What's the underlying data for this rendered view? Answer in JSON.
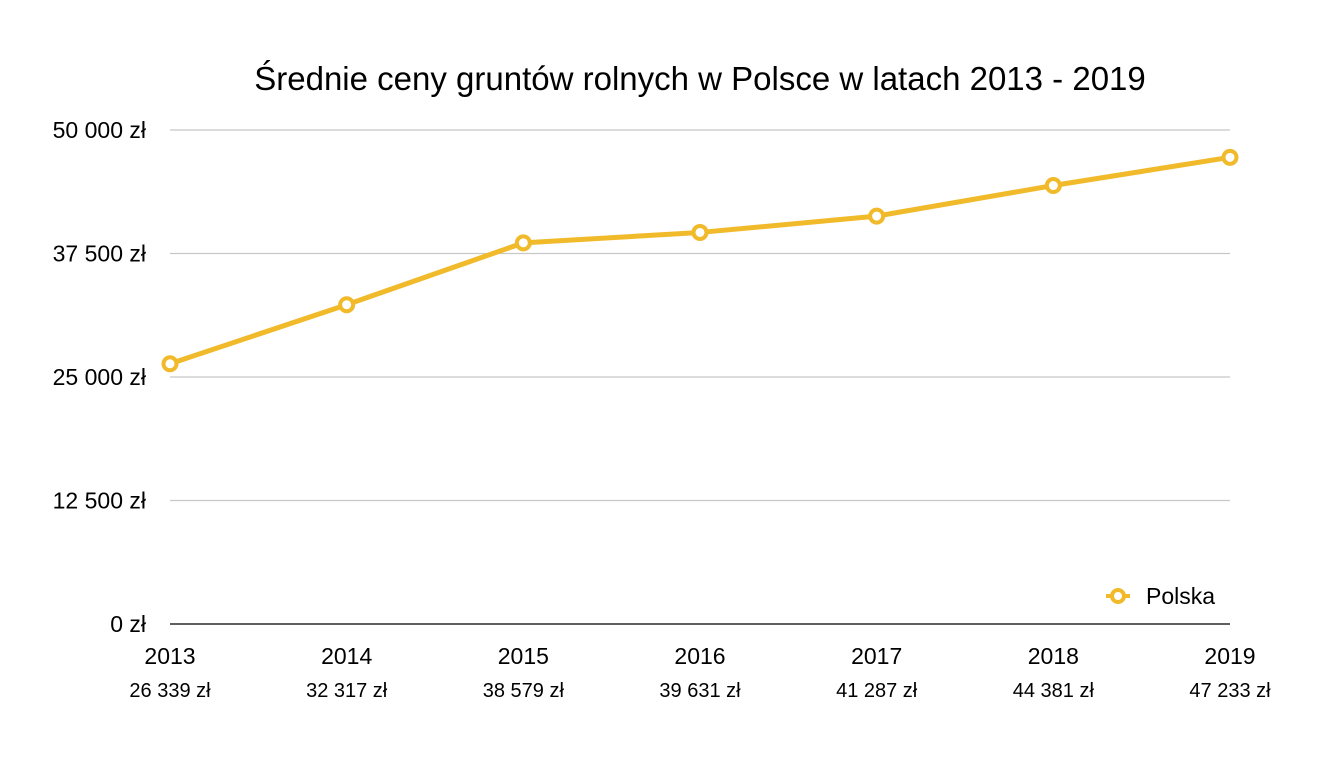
{
  "chart_data": {
    "type": "line",
    "title": "Średnie ceny gruntów rolnych w Polsce w latach 2013 - 2019",
    "xlabel": "",
    "ylabel": "",
    "categories": [
      "2013",
      "2014",
      "2015",
      "2016",
      "2017",
      "2018",
      "2019"
    ],
    "series": [
      {
        "name": "Polska",
        "color": "#F0BA2A",
        "values": [
          26339,
          32317,
          38579,
          39631,
          41287,
          44381,
          47233
        ]
      }
    ],
    "data_labels": [
      "26 339 zł",
      "32 317 zł",
      "38 579 zł",
      "39 631 zł",
      "41 287 zł",
      "44 381 zł",
      "47 233 zł"
    ],
    "ylim": [
      0,
      50000
    ],
    "yticks": [
      0,
      12500,
      25000,
      37500,
      50000
    ],
    "ytick_labels": [
      "0 zł",
      "12 500 zł",
      "25 000 zł",
      "37 500 zł",
      "50 000 zł"
    ],
    "grid": true,
    "legend_position": "bottom-right"
  }
}
